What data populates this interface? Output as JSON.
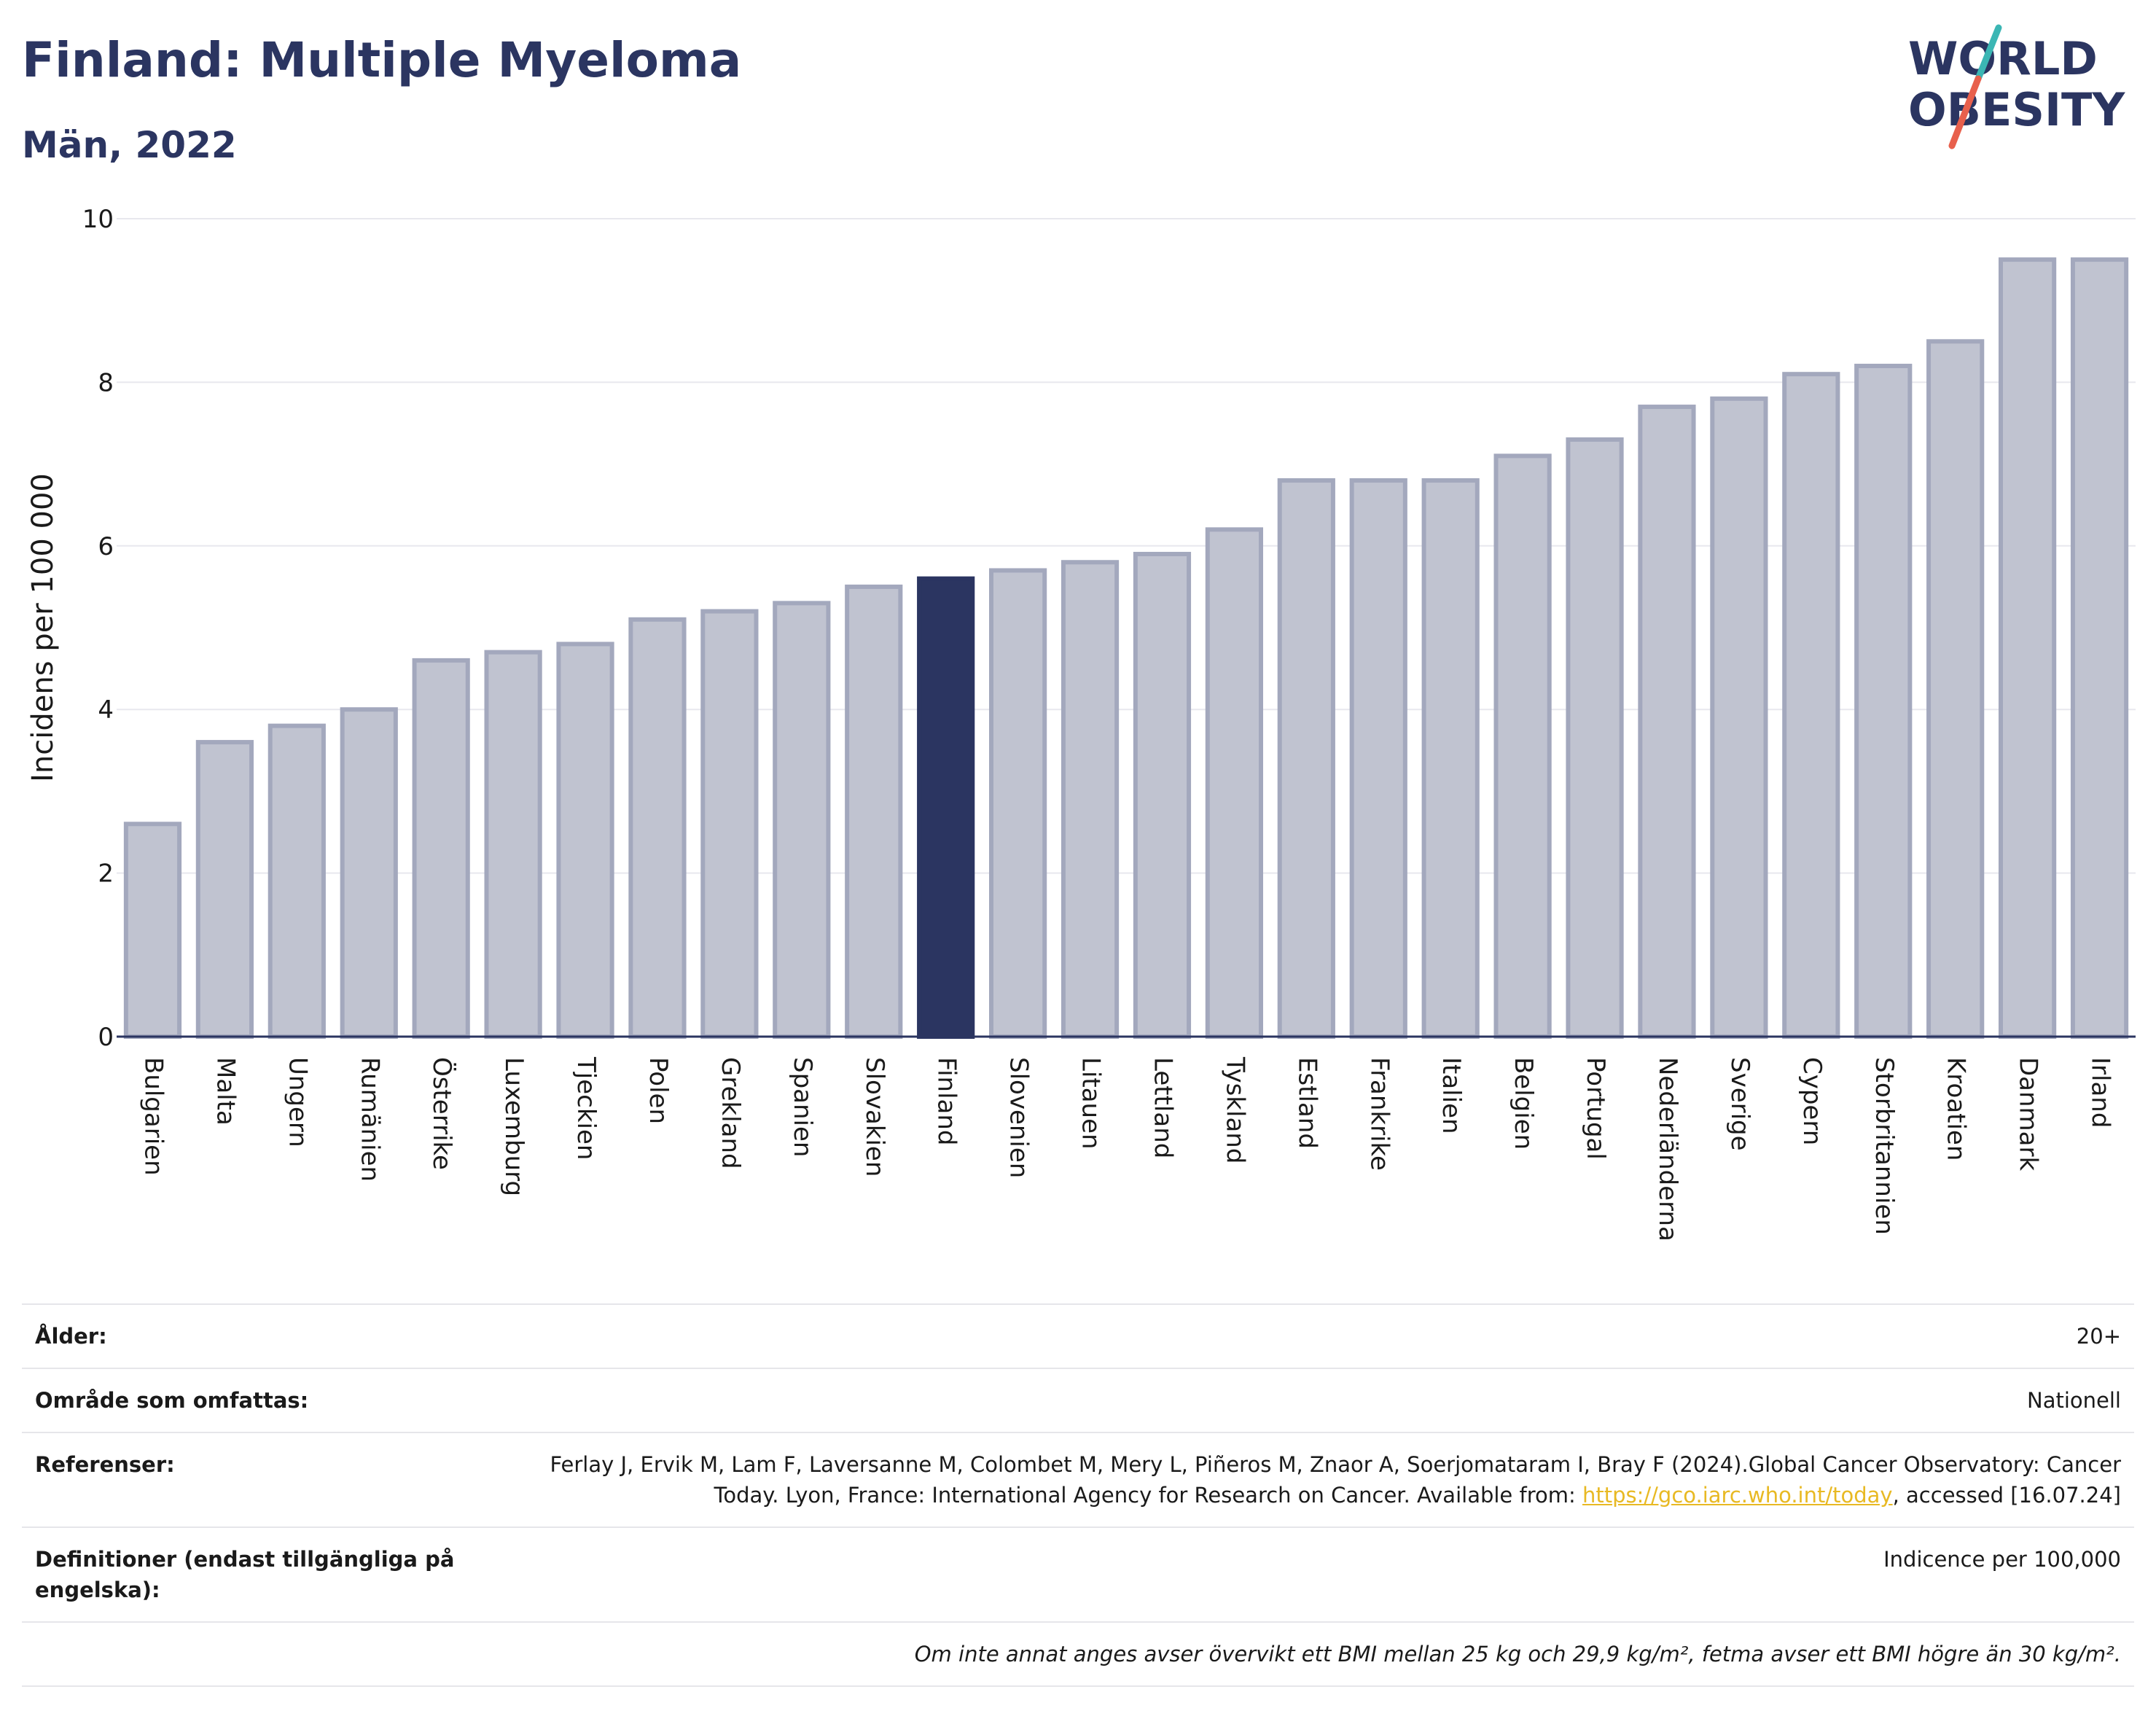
{
  "header": {
    "title": "Finland: Multiple Myeloma",
    "subtitle": "Män, 2022"
  },
  "logo": {
    "line1": "WORLD",
    "line2": "OBESITY",
    "colors": {
      "text": "#2b3561",
      "slash_red": "#e8604c",
      "slash_teal": "#3bb6b4"
    }
  },
  "chart_data": {
    "type": "bar",
    "title": "Finland: Multiple Myeloma",
    "subtitle": "Män, 2022",
    "ylabel": "Incidens per 100 000",
    "xlabel": "",
    "ylim": [
      0,
      10
    ],
    "yticks": [
      0,
      2,
      4,
      6,
      8,
      10
    ],
    "grid": true,
    "highlight": "Finland",
    "colors": {
      "bar": "#c0c3d0",
      "bar_edge": "#a3a8bd",
      "highlight": "#2b3561",
      "grid": "#e8e8ee",
      "axis": "#2b3561"
    },
    "categories": [
      "Bulgarien",
      "Malta",
      "Ungern",
      "Rumänien",
      "Österrike",
      "Luxemburg",
      "Tjeckien",
      "Polen",
      "Grekland",
      "Spanien",
      "Slovakien",
      "Finland",
      "Slovenien",
      "Litauen",
      "Lettland",
      "Tyskland",
      "Estland",
      "Frankrike",
      "Italien",
      "Belgien",
      "Portugal",
      "Nederländerna",
      "Sverige",
      "Cypern",
      "Storbritannien",
      "Kroatien",
      "Danmark",
      "Irland"
    ],
    "values": [
      2.6,
      3.6,
      3.8,
      4.0,
      4.6,
      4.7,
      4.8,
      5.1,
      5.2,
      5.3,
      5.5,
      5.6,
      5.7,
      5.8,
      5.9,
      6.2,
      6.8,
      6.8,
      6.8,
      7.1,
      7.3,
      7.7,
      7.8,
      8.1,
      8.2,
      8.5,
      9.5,
      9.5
    ]
  },
  "info": {
    "age_label": "Ålder:",
    "age_value": "20+",
    "area_label": "Område som omfattas:",
    "area_value": "Nationell",
    "refs_label": "Referenser:",
    "refs_text": "Ferlay J, Ervik M, Lam F, Laversanne M, Colombet M, Mery L, Piñeros M, Znaor A, Soerjomataram I, Bray F (2024).Global Cancer Observatory: Cancer Today. Lyon, France: International Agency for Research on Cancer. Available from:",
    "refs_link": "https://gco.iarc.who.int/today",
    "refs_tail": ", accessed [16.07.24]",
    "defs_label": "Definitioner (endast tillgängliga på engelska):",
    "defs_value": "Indicence per 100,000",
    "footnote": "Om inte annat anges avser övervikt ett BMI mellan 25 kg och 29,9 kg/m², fetma avser ett BMI högre än 30 kg/m²."
  }
}
